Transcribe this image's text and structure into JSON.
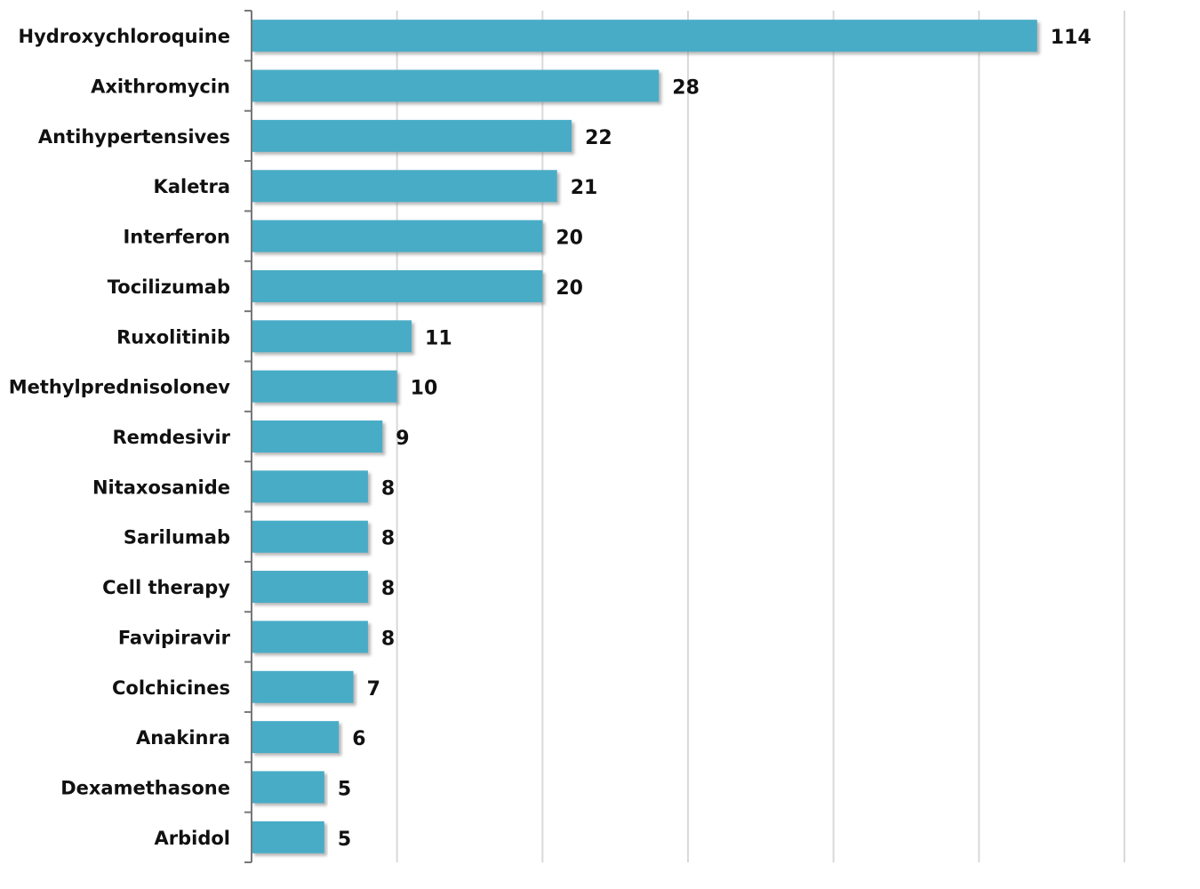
{
  "chart_data": {
    "type": "bar",
    "orientation": "horizontal",
    "title": "",
    "xlabel": "",
    "ylabel": "",
    "xlim": [
      0,
      60
    ],
    "grid": true,
    "bar_color": "#4aacc6",
    "note": "Hydroxychloroquine bar truncated (value exceeds axis range)",
    "categories": [
      "Hydroxychloroquine",
      "Axithromycin",
      "Antihypertensives",
      "Kaletra",
      "Interferon",
      "Tocilizumab",
      "Ruxolitinib",
      "Methylprednisolonev",
      "Remdesivir",
      "Nitaxosanide",
      "Sarilumab",
      "Cell therapy",
      "Favipiravir",
      "Colchicines",
      "Anakinra",
      "Dexamethasone",
      "Arbidol"
    ],
    "values": [
      114,
      28,
      22,
      21,
      20,
      20,
      11,
      10,
      9,
      8,
      8,
      8,
      8,
      7,
      6,
      5,
      5
    ],
    "value_labels": [
      "114",
      "28",
      "22",
      "21",
      "20",
      "20",
      "11",
      "10",
      "9",
      "8",
      "8",
      "8",
      "8",
      "7",
      "6",
      "5",
      "5"
    ]
  }
}
